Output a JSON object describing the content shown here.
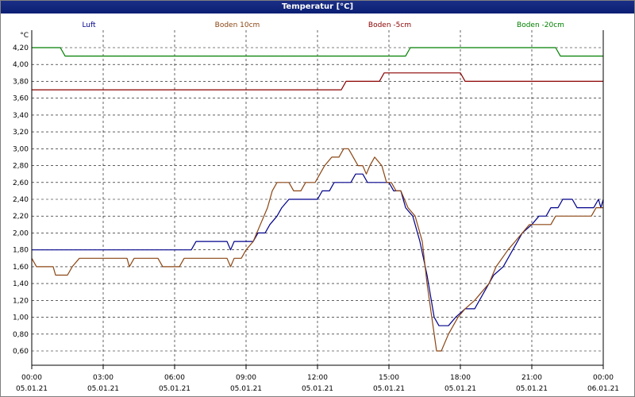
{
  "window": {
    "title": "Temperatur [°C]"
  },
  "chart_data": {
    "type": "line",
    "ylabel": "°C",
    "ylim": [
      0.44,
      4.3
    ],
    "yticks": [
      "0,60",
      "0,80",
      "1,00",
      "1,20",
      "1,40",
      "1,60",
      "1,80",
      "2,00",
      "2,20",
      "2,40",
      "2,60",
      "2,80",
      "3,00",
      "3,20",
      "3,40",
      "3,60",
      "3,80",
      "4,00",
      "4,20"
    ],
    "xlim": [
      0,
      24
    ],
    "xticks": [
      {
        "time": "00:00",
        "date": "05.01.21"
      },
      {
        "time": "03:00",
        "date": "05.01.21"
      },
      {
        "time": "06:00",
        "date": "05.01.21"
      },
      {
        "time": "09:00",
        "date": "05.01.21"
      },
      {
        "time": "12:00",
        "date": "05.01.21"
      },
      {
        "time": "15:00",
        "date": "05.01.21"
      },
      {
        "time": "18:00",
        "date": "05.01.21"
      },
      {
        "time": "21:00",
        "date": "05.01.21"
      },
      {
        "time": "00:00",
        "date": "06.01.21"
      }
    ],
    "grid": true,
    "legend_position": "top",
    "series": [
      {
        "name": "Luft",
        "color": "#00008b",
        "points": [
          [
            0,
            1.8
          ],
          [
            6.7,
            1.8
          ],
          [
            6.9,
            1.9
          ],
          [
            8.2,
            1.9
          ],
          [
            8.35,
            1.8
          ],
          [
            8.5,
            1.9
          ],
          [
            9.3,
            1.9
          ],
          [
            9.5,
            2.0
          ],
          [
            9.8,
            2.0
          ],
          [
            10.0,
            2.1
          ],
          [
            10.3,
            2.2
          ],
          [
            10.5,
            2.3
          ],
          [
            10.8,
            2.4
          ],
          [
            12.0,
            2.4
          ],
          [
            12.2,
            2.5
          ],
          [
            12.5,
            2.5
          ],
          [
            12.7,
            2.6
          ],
          [
            13.4,
            2.6
          ],
          [
            13.6,
            2.7
          ],
          [
            13.9,
            2.7
          ],
          [
            14.1,
            2.6
          ],
          [
            15.0,
            2.6
          ],
          [
            15.2,
            2.5
          ],
          [
            15.5,
            2.5
          ],
          [
            15.7,
            2.3
          ],
          [
            16.0,
            2.2
          ],
          [
            16.3,
            1.9
          ],
          [
            16.6,
            1.5
          ],
          [
            16.9,
            1.0
          ],
          [
            17.1,
            0.9
          ],
          [
            17.5,
            0.9
          ],
          [
            17.8,
            1.0
          ],
          [
            18.2,
            1.1
          ],
          [
            18.6,
            1.1
          ],
          [
            19.0,
            1.3
          ],
          [
            19.4,
            1.5
          ],
          [
            19.8,
            1.6
          ],
          [
            20.2,
            1.8
          ],
          [
            20.6,
            2.0
          ],
          [
            21.0,
            2.1
          ],
          [
            21.3,
            2.2
          ],
          [
            21.6,
            2.2
          ],
          [
            21.8,
            2.3
          ],
          [
            22.1,
            2.3
          ],
          [
            22.3,
            2.4
          ],
          [
            22.7,
            2.4
          ],
          [
            22.9,
            2.3
          ],
          [
            23.6,
            2.3
          ],
          [
            23.8,
            2.4
          ],
          [
            23.9,
            2.3
          ],
          [
            24.0,
            2.4
          ]
        ]
      },
      {
        "name": "Boden 10cm",
        "color": "#8b4513",
        "points": [
          [
            0,
            1.7
          ],
          [
            0.2,
            1.6
          ],
          [
            0.9,
            1.6
          ],
          [
            1.0,
            1.5
          ],
          [
            1.5,
            1.5
          ],
          [
            1.7,
            1.6
          ],
          [
            2.0,
            1.7
          ],
          [
            4.0,
            1.7
          ],
          [
            4.1,
            1.6
          ],
          [
            4.3,
            1.7
          ],
          [
            5.3,
            1.7
          ],
          [
            5.5,
            1.6
          ],
          [
            6.2,
            1.6
          ],
          [
            6.4,
            1.7
          ],
          [
            8.2,
            1.7
          ],
          [
            8.35,
            1.6
          ],
          [
            8.5,
            1.7
          ],
          [
            8.8,
            1.7
          ],
          [
            9.0,
            1.8
          ],
          [
            9.3,
            1.9
          ],
          [
            9.6,
            2.1
          ],
          [
            9.9,
            2.3
          ],
          [
            10.1,
            2.5
          ],
          [
            10.3,
            2.6
          ],
          [
            10.8,
            2.6
          ],
          [
            11.0,
            2.5
          ],
          [
            11.3,
            2.5
          ],
          [
            11.5,
            2.6
          ],
          [
            11.9,
            2.6
          ],
          [
            12.1,
            2.7
          ],
          [
            12.3,
            2.8
          ],
          [
            12.6,
            2.9
          ],
          [
            12.9,
            2.9
          ],
          [
            13.1,
            3.0
          ],
          [
            13.3,
            3.0
          ],
          [
            13.5,
            2.9
          ],
          [
            13.7,
            2.8
          ],
          [
            13.9,
            2.8
          ],
          [
            14.05,
            2.7
          ],
          [
            14.2,
            2.8
          ],
          [
            14.4,
            2.9
          ],
          [
            14.7,
            2.8
          ],
          [
            14.9,
            2.6
          ],
          [
            15.1,
            2.6
          ],
          [
            15.3,
            2.5
          ],
          [
            15.5,
            2.5
          ],
          [
            15.8,
            2.3
          ],
          [
            16.1,
            2.2
          ],
          [
            16.4,
            1.9
          ],
          [
            16.6,
            1.4
          ],
          [
            16.8,
            1.0
          ],
          [
            17.0,
            0.6
          ],
          [
            17.2,
            0.6
          ],
          [
            17.5,
            0.8
          ],
          [
            17.9,
            1.0
          ],
          [
            18.2,
            1.1
          ],
          [
            18.6,
            1.2
          ],
          [
            18.9,
            1.3
          ],
          [
            19.2,
            1.4
          ],
          [
            19.5,
            1.6
          ],
          [
            20.0,
            1.8
          ],
          [
            20.3,
            1.9
          ],
          [
            20.6,
            2.0
          ],
          [
            20.9,
            2.1
          ],
          [
            21.8,
            2.1
          ],
          [
            22.0,
            2.2
          ],
          [
            23.2,
            2.2
          ],
          [
            23.5,
            2.2
          ],
          [
            23.7,
            2.3
          ],
          [
            24.0,
            2.3
          ]
        ]
      },
      {
        "name": "Boden -5cm",
        "color": "#8b0000",
        "points": [
          [
            0,
            3.7
          ],
          [
            13.0,
            3.7
          ],
          [
            13.2,
            3.8
          ],
          [
            14.6,
            3.8
          ],
          [
            14.8,
            3.9
          ],
          [
            18.0,
            3.9
          ],
          [
            18.2,
            3.8
          ],
          [
            24.0,
            3.8
          ]
        ]
      },
      {
        "name": "Boden -20cm",
        "color": "#008000",
        "points": [
          [
            0,
            4.2
          ],
          [
            1.2,
            4.2
          ],
          [
            1.4,
            4.1
          ],
          [
            15.7,
            4.1
          ],
          [
            15.9,
            4.2
          ],
          [
            22.0,
            4.2
          ],
          [
            22.2,
            4.1
          ],
          [
            24.0,
            4.1
          ]
        ]
      }
    ]
  }
}
